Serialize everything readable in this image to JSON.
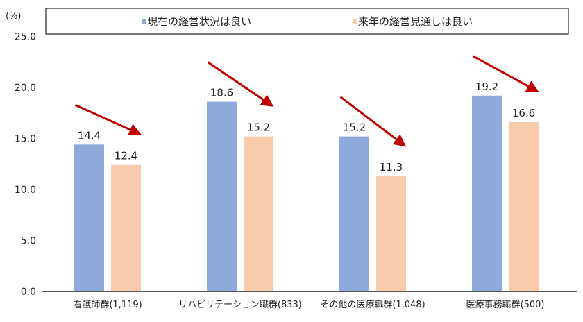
{
  "chart_data": {
    "type": "bar",
    "title": "",
    "ylabel": "(%)",
    "xlabel": "",
    "ylim": [
      0,
      25
    ],
    "yticks": [
      "0.0",
      "5.0",
      "10.0",
      "15.0",
      "20.0",
      "25.0"
    ],
    "categories": [
      "看護師群(1,119)",
      "リハビリテーション職群(833)",
      "その他の医療職群(1,048)",
      "医療事務職群(500)"
    ],
    "series": [
      {
        "name": "現在の経営状況は良い",
        "color": "#8eaadb",
        "values": [
          14.4,
          18.6,
          15.2,
          19.2
        ],
        "labels": [
          "14.4",
          "18.6",
          "15.2",
          "19.2"
        ]
      },
      {
        "name": "来年の経営見通しは良い",
        "color": "#f8cbad",
        "values": [
          12.4,
          15.2,
          11.3,
          16.6
        ],
        "labels": [
          "12.4",
          "15.2",
          "11.3",
          "16.6"
        ]
      }
    ],
    "legend_position": "top",
    "grid": false,
    "annotations": "red downward arrows from current to next-year bar in each group",
    "arrow_color": "#c00000"
  }
}
